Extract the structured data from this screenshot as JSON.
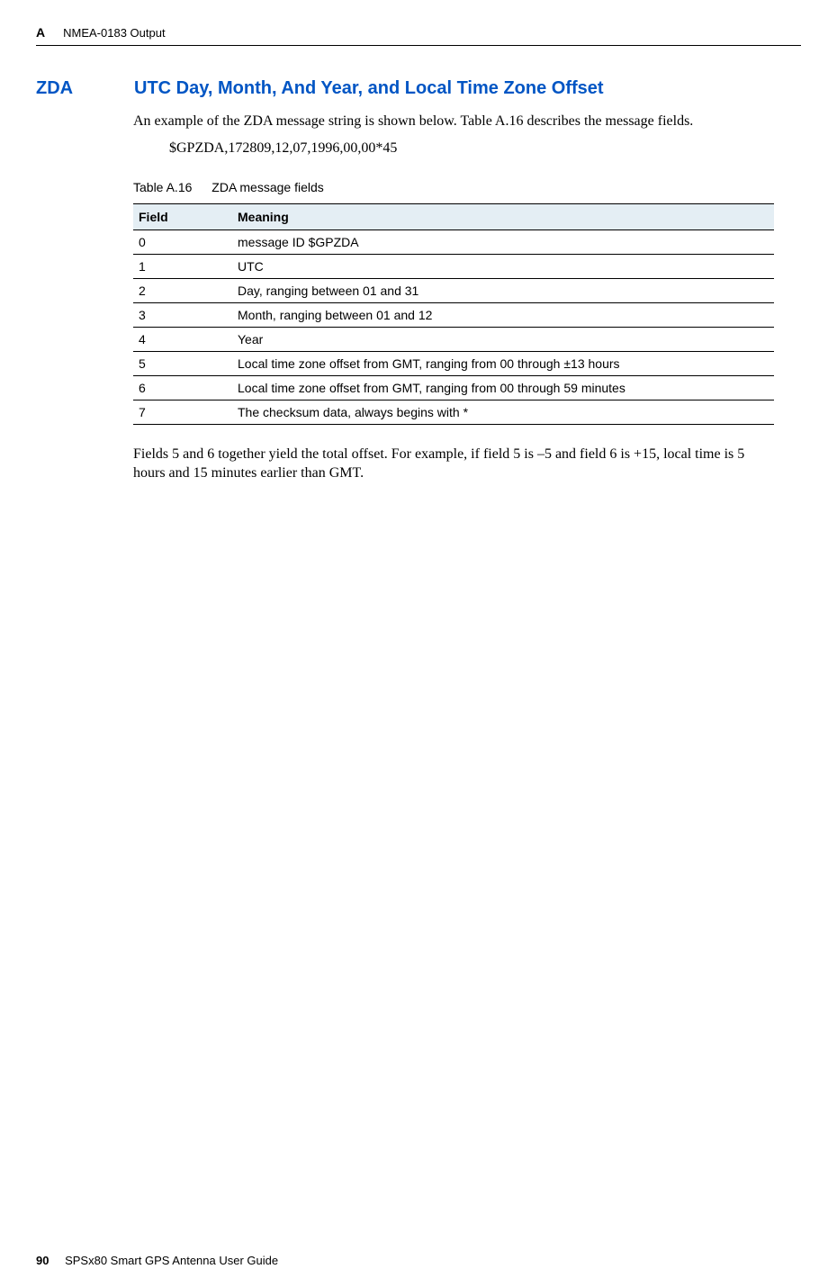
{
  "header": {
    "appendix_letter": "A",
    "section_name": "NMEA-0183 Output"
  },
  "section": {
    "code": "ZDA",
    "title": "UTC Day, Month, And Year, and Local Time Zone Offset"
  },
  "intro": "An example of the ZDA message string is shown below. Table A.16 describes the message fields.",
  "example": "$GPZDA,172809,12,07,1996,00,00*45",
  "table": {
    "caption_label": "Table A.16",
    "caption_text": "ZDA message fields",
    "columns": [
      "Field",
      "Meaning"
    ],
    "rows": [
      [
        "0",
        "message ID $GPZDA"
      ],
      [
        "1",
        "UTC"
      ],
      [
        "2",
        "Day, ranging between 01 and 31"
      ],
      [
        "3",
        "Month, ranging between 01 and 12"
      ],
      [
        "4",
        "Year"
      ],
      [
        "5",
        "Local time zone offset from GMT, ranging from 00 through ±13 hours"
      ],
      [
        "6",
        "Local time zone offset from GMT, ranging from 00 through 59 minutes"
      ],
      [
        "7",
        "The checksum data, always begins with *"
      ]
    ]
  },
  "follow_text": "Fields 5 and 6 together yield the total offset. For example, if field 5 is –5 and field 6 is +15, local time is 5 hours and 15 minutes earlier than GMT.",
  "footer": {
    "page_number": "90",
    "doc_title": "SPSx80 Smart GPS Antenna User Guide"
  },
  "colors": {
    "heading_blue": "#0055c4",
    "table_header_bg": "#e4eef4"
  }
}
